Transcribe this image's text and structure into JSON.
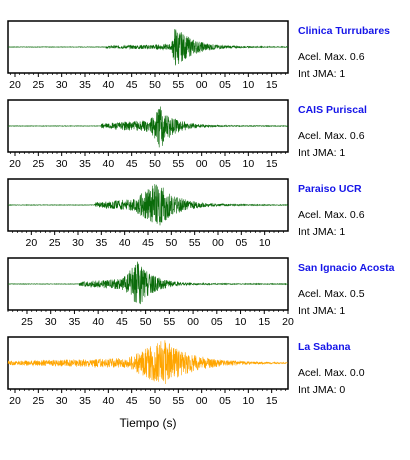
{
  "chart_data": {
    "type": "line",
    "xlabel": "Tiempo (s)",
    "panels": [
      {
        "station": "Clinica Turrubares",
        "accel_label": "Acel. Max. 0.6",
        "int_label": "Int JMA: 1",
        "ticks": [
          "20",
          "25",
          "30",
          "35",
          "40",
          "45",
          "50",
          "55",
          "00",
          "05",
          "10",
          "15"
        ],
        "tick_start": 20,
        "x_range": [
          18.5,
          78.5
        ],
        "signal": {
          "start": 39.5,
          "onset": 53.5,
          "peak": 54.3,
          "amp": 0.85,
          "pre_amp": 0.12,
          "decay": 3.8,
          "color": "#0a6b0a"
        }
      },
      {
        "station": "CAIS Puriscal",
        "accel_label": "Acel. Max. 0.6",
        "int_label": "Int JMA: 1",
        "ticks": [
          "20",
          "25",
          "30",
          "35",
          "40",
          "45",
          "50",
          "55",
          "00",
          "05",
          "10",
          "15"
        ],
        "tick_start": 20,
        "x_range": [
          18.5,
          78.5
        ],
        "signal": {
          "start": 38.5,
          "onset": 49.0,
          "peak": 51.0,
          "amp": 0.95,
          "pre_amp": 0.25,
          "decay": 3.0,
          "color": "#0a6b0a"
        }
      },
      {
        "station": "Paraiso UCR",
        "accel_label": "Acel. Max. 0.6",
        "int_label": "Int JMA: 1",
        "ticks": [
          "20",
          "25",
          "30",
          "35",
          "40",
          "45",
          "50",
          "55",
          "00",
          "05",
          "10"
        ],
        "tick_start": 20,
        "x_range": [
          15.0,
          75.0
        ],
        "signal": {
          "start": 33.5,
          "onset": 42.0,
          "peak": 47.0,
          "amp": 0.95,
          "pre_amp": 0.25,
          "decay": 4.0,
          "color": "#0a6b0a"
        }
      },
      {
        "station": "San Ignacio Acosta",
        "accel_label": "Acel. Max. 0.5",
        "int_label": "Int JMA: 1",
        "ticks": [
          "25",
          "30",
          "35",
          "40",
          "45",
          "50",
          "55",
          "00",
          "05",
          "10",
          "15",
          "20"
        ],
        "tick_start": 25,
        "x_range": [
          21.0,
          80.0
        ],
        "signal": {
          "start": 36.0,
          "onset": 45.0,
          "peak": 48.5,
          "amp": 0.95,
          "pre_amp": 0.22,
          "decay": 3.2,
          "color": "#0a6b0a"
        }
      },
      {
        "station": "La Sabana",
        "accel_label": "Acel. Max. 0.0",
        "int_label": "Int JMA: 0",
        "ticks": [
          "20",
          "25",
          "30",
          "35",
          "40",
          "45",
          "50",
          "55",
          "00",
          "05",
          "10",
          "15"
        ],
        "tick_start": 20,
        "x_range": [
          18.5,
          78.5
        ],
        "signal": {
          "start": 18.5,
          "onset": 44.0,
          "peak": 52.0,
          "amp": 0.95,
          "pre_amp": 0.2,
          "decay": 6.0,
          "color": "#ffa500"
        }
      }
    ]
  }
}
